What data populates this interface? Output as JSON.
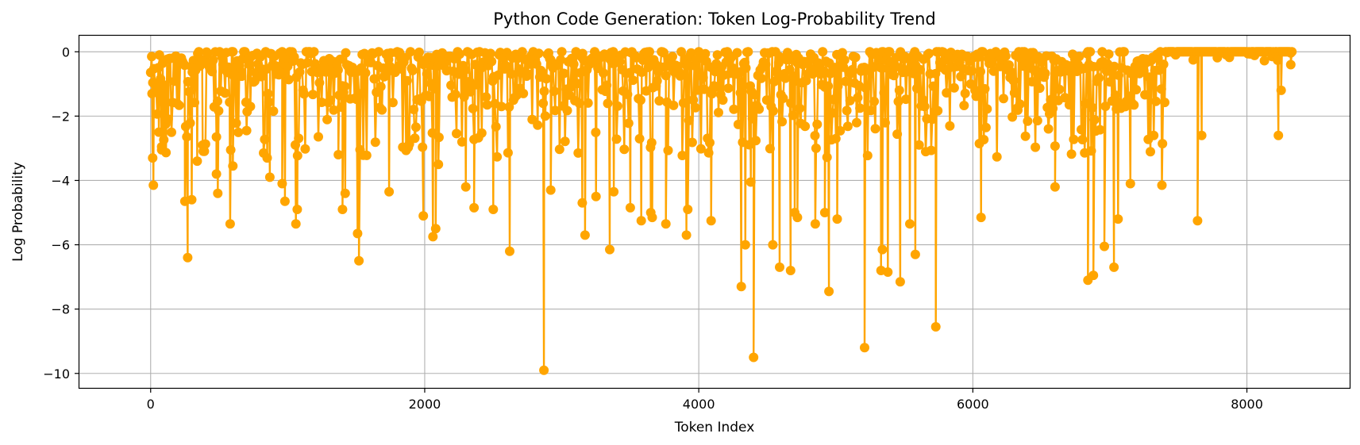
{
  "chart_data": {
    "type": "line",
    "title": "Python Code Generation: Token Log-Probability Trend",
    "xlabel": "Token Index",
    "ylabel": "Log Probability",
    "xlim": [
      -520,
      8750
    ],
    "ylim": [
      -10.45,
      0.5
    ],
    "xticks": [
      0,
      2000,
      4000,
      6000,
      8000
    ],
    "xtick_labels": [
      "0",
      "2000",
      "4000",
      "6000",
      "8000"
    ],
    "yticks": [
      0,
      -2,
      -4,
      -6,
      -8,
      -10
    ],
    "ytick_labels": [
      "0",
      "−2",
      "−4",
      "−6",
      "−8",
      "−10"
    ],
    "grid": true,
    "color": "#FFA500",
    "marker": "circle",
    "series": [
      {
        "x_start": 0,
        "x_end": 8330,
        "n_points": 8331,
        "baseline": 0,
        "notable_points": [
          [
            10,
            -1.3
          ],
          [
            15,
            -3.3
          ],
          [
            20,
            -4.15
          ],
          [
            60,
            -2.5
          ],
          [
            80,
            -3.05
          ],
          [
            110,
            -2.25
          ],
          [
            250,
            -4.65
          ],
          [
            270,
            -6.4
          ],
          [
            300,
            -4.6
          ],
          [
            340,
            -3.4
          ],
          [
            380,
            -2.9
          ],
          [
            480,
            -3.8
          ],
          [
            490,
            -4.4
          ],
          [
            580,
            -5.35
          ],
          [
            600,
            -3.55
          ],
          [
            700,
            -2.45
          ],
          [
            850,
            -3.3
          ],
          [
            870,
            -3.9
          ],
          [
            960,
            -4.1
          ],
          [
            980,
            -4.65
          ],
          [
            1060,
            -5.35
          ],
          [
            1070,
            -4.9
          ],
          [
            1370,
            -3.2
          ],
          [
            1400,
            -4.9
          ],
          [
            1420,
            -4.4
          ],
          [
            1510,
            -5.65
          ],
          [
            1520,
            -6.5
          ],
          [
            1740,
            -4.35
          ],
          [
            1990,
            -5.1
          ],
          [
            2060,
            -5.75
          ],
          [
            2080,
            -5.5
          ],
          [
            2100,
            -3.5
          ],
          [
            2300,
            -4.2
          ],
          [
            2360,
            -4.85
          ],
          [
            2500,
            -4.9
          ],
          [
            2620,
            -6.2
          ],
          [
            2870,
            -9.9
          ],
          [
            2920,
            -4.3
          ],
          [
            3150,
            -4.7
          ],
          [
            3170,
            -5.7
          ],
          [
            3250,
            -4.5
          ],
          [
            3350,
            -6.15
          ],
          [
            3380,
            -4.35
          ],
          [
            3500,
            -4.85
          ],
          [
            3580,
            -5.25
          ],
          [
            3650,
            -5.0
          ],
          [
            3660,
            -5.15
          ],
          [
            3760,
            -5.35
          ],
          [
            3910,
            -5.7
          ],
          [
            3920,
            -4.9
          ],
          [
            4090,
            -5.25
          ],
          [
            4310,
            -7.3
          ],
          [
            4340,
            -6.0
          ],
          [
            4380,
            -4.05
          ],
          [
            4400,
            -9.5
          ],
          [
            4540,
            -6.0
          ],
          [
            4590,
            -6.7
          ],
          [
            4670,
            -6.8
          ],
          [
            4700,
            -5.0
          ],
          [
            4720,
            -5.15
          ],
          [
            4850,
            -5.35
          ],
          [
            4920,
            -5.0
          ],
          [
            4950,
            -7.45
          ],
          [
            5010,
            -5.2
          ],
          [
            5210,
            -9.2
          ],
          [
            5330,
            -6.8
          ],
          [
            5340,
            -6.15
          ],
          [
            5380,
            -6.85
          ],
          [
            5470,
            -7.15
          ],
          [
            5540,
            -5.35
          ],
          [
            5580,
            -6.3
          ],
          [
            5730,
            -8.55
          ],
          [
            6060,
            -5.15
          ],
          [
            6600,
            -4.2
          ],
          [
            6840,
            -7.1
          ],
          [
            6880,
            -6.95
          ],
          [
            6960,
            -6.05
          ],
          [
            7030,
            -6.7
          ],
          [
            7060,
            -5.2
          ],
          [
            7150,
            -4.1
          ],
          [
            7380,
            -4.15
          ],
          [
            7640,
            -5.25
          ],
          [
            7670,
            -2.6
          ],
          [
            8230,
            -2.6
          ],
          [
            8250,
            -1.2
          ],
          [
            8320,
            -0.4
          ]
        ]
      }
    ]
  }
}
